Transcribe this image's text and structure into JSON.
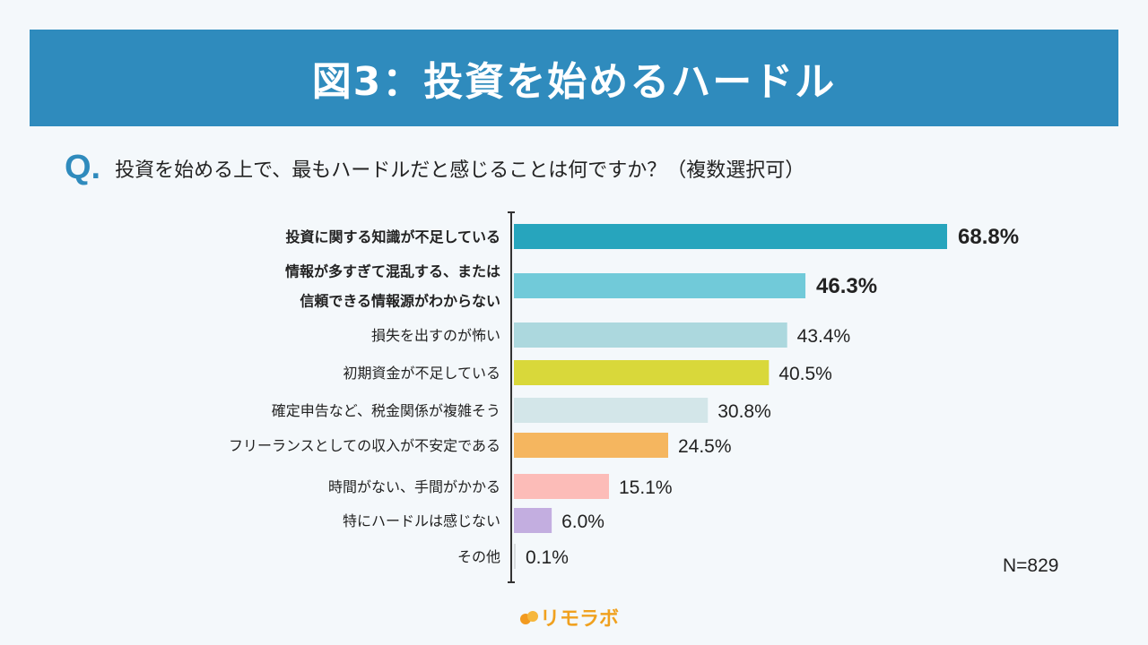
{
  "header": {
    "title": "図3：投資を始めるハードル"
  },
  "question": {
    "mark": "Q.",
    "text": "投資を始める上で、最もハードルだと感じることは何ですか？（複数選択可）"
  },
  "note": "N=829",
  "logo": "リモラボ",
  "chart_data": {
    "type": "bar",
    "orientation": "horizontal",
    "categories": [
      [
        "投資に関する知識が不足している"
      ],
      [
        "情報が多すぎて混乱する、または",
        "信頼できる情報源がわからない"
      ],
      [
        "損失を出すのが怖い"
      ],
      [
        "初期資金が不足している"
      ],
      [
        "確定申告など、税金関係が複雑そう"
      ],
      [
        "フリーランスとしての収入が不安定である"
      ],
      [
        "時間がない、手間がかかる"
      ],
      [
        "特にハードルは感じない"
      ],
      [
        "その他"
      ]
    ],
    "values": [
      68.8,
      46.3,
      43.4,
      40.5,
      30.8,
      24.5,
      15.1,
      6.0,
      0.1
    ],
    "labels": [
      "68.8%",
      "46.3%",
      "43.4%",
      "40.5%",
      "30.8%",
      "24.5%",
      "15.1%",
      "6.0%",
      "0.1%"
    ],
    "colors": [
      "#27a5bd",
      "#71cad9",
      "#acd8de",
      "#d9d83a",
      "#d3e6e9",
      "#f5b65f",
      "#fcbcb8",
      "#c3aee0",
      "#d9dde0"
    ],
    "bold": [
      true,
      true,
      false,
      false,
      false,
      false,
      false,
      false,
      false
    ],
    "unit": "%",
    "grid": false
  }
}
